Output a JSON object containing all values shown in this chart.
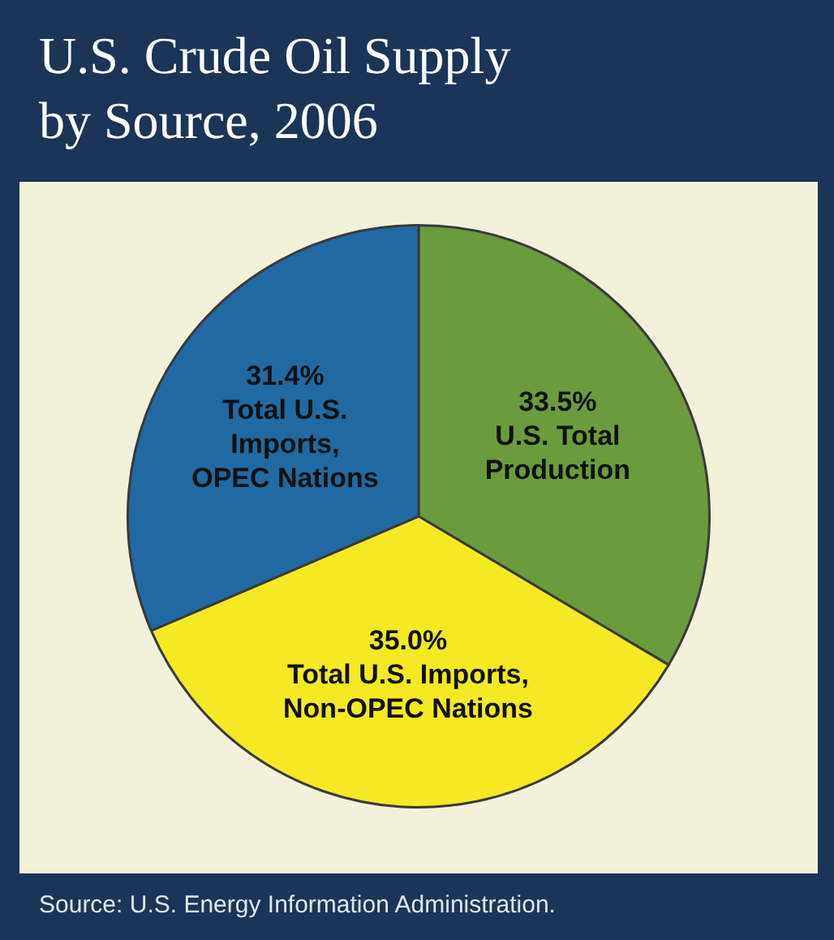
{
  "chart_data": {
    "type": "pie",
    "title": "U.S. Crude Oil Supply by Source, 2006",
    "categories": [
      "U.S. Total\nProduction",
      "Total U.S. Imports,\nNon-OPEC Nations",
      "Total U.S.\nImports,\nOPEC Nations"
    ],
    "values": [
      33.5,
      35.0,
      31.4
    ],
    "value_labels": [
      "33.5%",
      "35.0%",
      "31.4%"
    ],
    "colors": [
      "#6b9b3d",
      "#f4e923",
      "#2069a3"
    ],
    "annotations": [
      "Source: U.S. Energy Information Administration."
    ],
    "legend": false
  }
}
